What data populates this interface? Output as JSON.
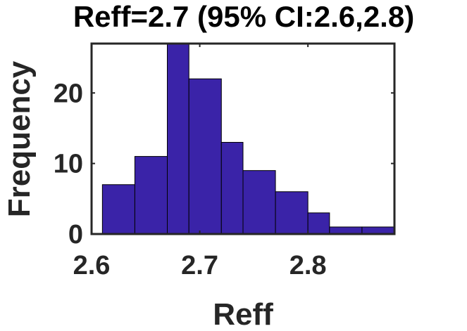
{
  "chart_data": {
    "type": "bar",
    "title": "Reff=2.7 (95% CI:2.6,2.8)",
    "xlabel": "Reff",
    "ylabel": "Frequency",
    "bar_color": "#3a23a8",
    "bins": [
      {
        "start": 2.61,
        "end": 2.64,
        "count": 7
      },
      {
        "start": 2.64,
        "end": 2.67,
        "count": 11
      },
      {
        "start": 2.67,
        "end": 2.69,
        "count": 27
      },
      {
        "start": 2.69,
        "end": 2.72,
        "count": 22
      },
      {
        "start": 2.72,
        "end": 2.74,
        "count": 13
      },
      {
        "start": 2.74,
        "end": 2.77,
        "count": 9
      },
      {
        "start": 2.77,
        "end": 2.8,
        "count": 6
      },
      {
        "start": 2.8,
        "end": 2.82,
        "count": 3
      },
      {
        "start": 2.82,
        "end": 2.85,
        "count": 1
      },
      {
        "start": 2.85,
        "end": 2.88,
        "count": 1
      }
    ],
    "xlim": [
      2.6,
      2.88
    ],
    "ylim": [
      0,
      27
    ],
    "xticks": [
      2.6,
      2.7,
      2.8
    ],
    "xtick_labels": [
      "2.6",
      "2.7",
      "2.8"
    ],
    "yticks": [
      0,
      10,
      20
    ],
    "ytick_labels": [
      "0",
      "10",
      "20"
    ],
    "grid": false
  }
}
